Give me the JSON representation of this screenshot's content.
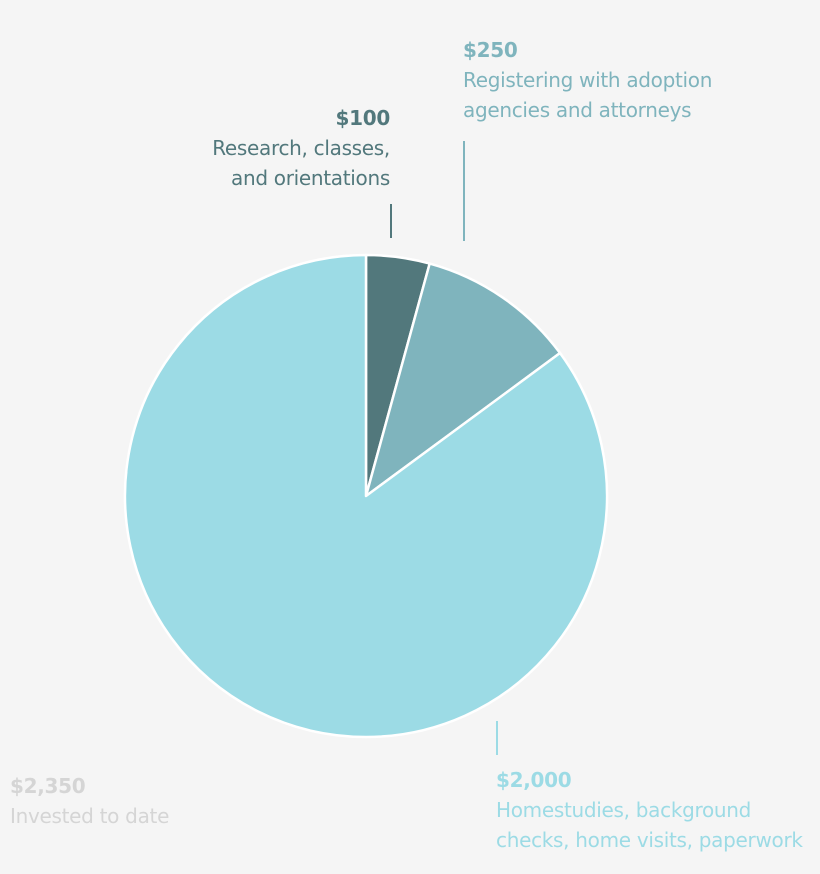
{
  "chart_data": {
    "type": "pie",
    "title": "",
    "categories": [
      "Research, classes, and orientations",
      "Registering with adoption agencies and attorneys",
      "Homestudies, background checks, home visits, paperwork"
    ],
    "values": [
      100,
      250,
      2000
    ],
    "colors": [
      "#52787c",
      "#7fb4bd",
      "#9cdbe5"
    ],
    "total": 2350,
    "total_label": "Invested to date",
    "start_angle_deg": 0,
    "direction": "clockwise",
    "legend": "none (direct labels with leader lines)"
  },
  "labels": {
    "research": {
      "amount": "$100",
      "line1": "Research, classes,",
      "line2": "and orientations"
    },
    "register": {
      "amount": "$250",
      "line1": "Registering with adoption",
      "line2": "agencies and attorneys"
    },
    "home": {
      "amount": "$2,000",
      "line1": "Homestudies, background",
      "line2": "checks, home visits, paperwork"
    },
    "total": {
      "amount": "$2,350",
      "line1": "Invested to date"
    }
  },
  "colors": {
    "background": "#f5f5f5",
    "slice_dark": "#52787c",
    "slice_medium": "#7fb4bd",
    "slice_light": "#9cdbe5",
    "total_text": "#d5d5d5",
    "slice_stroke": "#ffffff"
  }
}
